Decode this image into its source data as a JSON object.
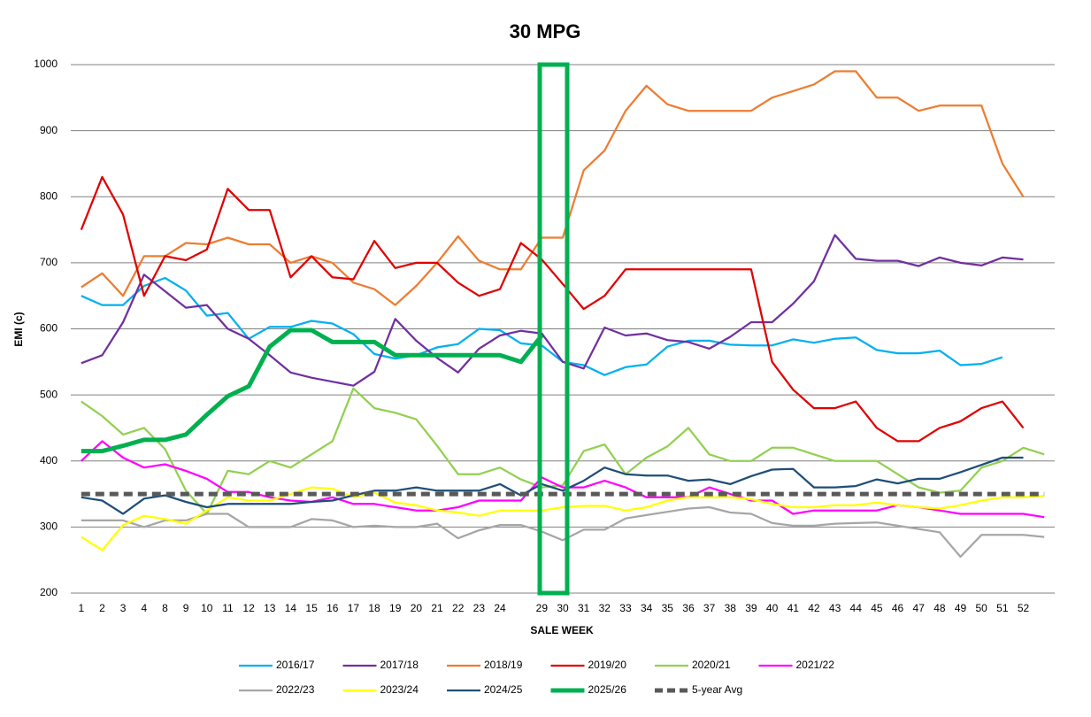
{
  "chart_data": {
    "type": "line",
    "title": "30 MPG",
    "x_label": "SALE WEEK",
    "y_label": "EMI (c)",
    "categories": [
      "1",
      "2",
      "3",
      "4",
      "8",
      "9",
      "10",
      "11",
      "12",
      "13",
      "14",
      "15",
      "16",
      "17",
      "18",
      "19",
      "20",
      "21",
      "22",
      "23",
      "24",
      null,
      "29",
      "30",
      "31",
      "32",
      "33",
      "34",
      "35",
      "36",
      "37",
      "38",
      "39",
      "40",
      "41",
      "42",
      "43",
      "44",
      "45",
      "46",
      "47",
      "48",
      "49",
      "50",
      "51",
      "52",
      null
    ],
    "ylim": [
      200,
      1000
    ],
    "yticks": [
      200,
      300,
      400,
      500,
      600,
      700,
      800,
      900,
      1000
    ],
    "grid": true,
    "legend": "bottom",
    "series": [
      {
        "name": "2016/17",
        "color": "#00b0f0",
        "values": [
          650,
          636,
          636,
          665,
          677,
          658,
          620,
          624,
          585,
          603,
          603,
          612,
          608,
          592,
          562,
          555,
          560,
          572,
          577,
          600,
          598,
          578,
          575,
          550,
          545,
          530,
          542,
          546,
          573,
          582,
          582,
          576,
          575,
          575,
          584,
          579,
          585,
          587,
          568,
          563,
          563,
          567,
          545,
          547,
          557,
          null,
          null
        ]
      },
      {
        "name": "2017/18",
        "color": "#7030a0",
        "values": [
          548,
          560,
          610,
          682,
          657,
          632,
          636,
          600,
          585,
          560,
          534,
          526,
          520,
          514,
          535,
          615,
          582,
          556,
          534,
          570,
          590,
          597,
          593,
          550,
          540,
          602,
          590,
          593,
          583,
          580,
          570,
          588,
          610,
          610,
          638,
          672,
          742,
          706,
          703,
          703,
          695,
          708,
          700,
          696,
          708,
          705,
          null
        ]
      },
      {
        "name": "2018/19",
        "color": "#ed7d31",
        "values": [
          663,
          684,
          650,
          710,
          710,
          730,
          728,
          738,
          728,
          728,
          700,
          710,
          700,
          670,
          660,
          636,
          665,
          700,
          740,
          703,
          690,
          690,
          738,
          738,
          840,
          870,
          930,
          968,
          940,
          930,
          930,
          930,
          930,
          950,
          960,
          970,
          990,
          990,
          950,
          950,
          930,
          938,
          938,
          938,
          850,
          800,
          null
        ]
      },
      {
        "name": "2019/20",
        "color": "#e00000",
        "values": [
          750,
          830,
          773,
          650,
          710,
          704,
          720,
          812,
          780,
          780,
          678,
          710,
          678,
          675,
          733,
          692,
          700,
          700,
          670,
          650,
          660,
          730,
          705,
          668,
          630,
          650,
          690,
          690,
          690,
          690,
          690,
          690,
          690,
          550,
          508,
          480,
          480,
          490,
          450,
          430,
          430,
          450,
          460,
          480,
          490,
          450,
          null
        ]
      },
      {
        "name": "2020/21",
        "color": "#92d050",
        "values": [
          490,
          468,
          440,
          450,
          418,
          355,
          320,
          385,
          380,
          400,
          390,
          410,
          430,
          510,
          480,
          473,
          463,
          423,
          380,
          380,
          390,
          372,
          360,
          363,
          415,
          425,
          380,
          405,
          422,
          450,
          410,
          400,
          400,
          420,
          420,
          410,
          400,
          400,
          400,
          380,
          360,
          352,
          355,
          390,
          400,
          420,
          410
        ]
      },
      {
        "name": "2021/22",
        "color": "#ff00ff",
        "values": [
          400,
          430,
          405,
          390,
          395,
          385,
          373,
          353,
          353,
          345,
          340,
          338,
          345,
          335,
          335,
          330,
          325,
          325,
          330,
          340,
          340,
          340,
          375,
          360,
          360,
          370,
          360,
          345,
          345,
          345,
          360,
          350,
          340,
          340,
          320,
          325,
          325,
          325,
          325,
          333,
          330,
          325,
          320,
          320,
          320,
          320,
          315
        ]
      },
      {
        "name": "2022/23",
        "color": "#a6a6a6",
        "values": [
          310,
          310,
          310,
          300,
          310,
          310,
          320,
          320,
          300,
          300,
          300,
          312,
          310,
          300,
          302,
          300,
          300,
          305,
          283,
          295,
          303,
          303,
          293,
          280,
          296,
          296,
          313,
          318,
          323,
          328,
          330,
          322,
          320,
          306,
          302,
          302,
          305,
          306,
          307,
          302,
          297,
          292,
          255,
          288,
          288,
          288,
          285
        ]
      },
      {
        "name": "2023/24",
        "color": "#ffff00",
        "values": [
          285,
          265,
          303,
          317,
          312,
          305,
          325,
          345,
          340,
          340,
          350,
          360,
          358,
          345,
          352,
          337,
          333,
          325,
          322,
          317,
          325,
          325,
          325,
          330,
          332,
          332,
          325,
          330,
          340,
          345,
          345,
          345,
          342,
          335,
          330,
          330,
          333,
          333,
          337,
          333,
          330,
          328,
          333,
          340,
          345,
          345,
          347
        ]
      },
      {
        "name": "2024/25",
        "color": "#1f4e79",
        "values": [
          345,
          340,
          320,
          343,
          348,
          338,
          330,
          335,
          335,
          335,
          335,
          338,
          340,
          348,
          355,
          355,
          360,
          355,
          355,
          355,
          365,
          348,
          365,
          355,
          370,
          390,
          380,
          378,
          378,
          370,
          372,
          365,
          377,
          387,
          388,
          360,
          360,
          362,
          372,
          366,
          373,
          373,
          383,
          394,
          405,
          405,
          null
        ]
      },
      {
        "name": "2025/26",
        "color": "#00b050",
        "width": 5,
        "values": [
          415,
          415,
          423,
          432,
          432,
          440,
          470,
          498,
          513,
          573,
          598,
          598,
          580,
          580,
          580,
          560,
          560,
          560,
          560,
          560,
          560,
          550,
          590,
          null,
          null,
          null,
          null,
          null,
          null,
          null,
          null,
          null,
          null,
          null,
          null,
          null,
          null,
          null,
          null,
          null,
          null,
          null,
          null,
          null,
          null,
          null,
          null
        ]
      },
      {
        "name": "5-year Avg",
        "color": "#595959",
        "width": 5,
        "dashed": true,
        "values": [
          350,
          350,
          350,
          350,
          350,
          350,
          350,
          350,
          350,
          350,
          350,
          350,
          350,
          350,
          350,
          350,
          350,
          350,
          350,
          350,
          350,
          350,
          350,
          350,
          350,
          350,
          350,
          350,
          350,
          350,
          350,
          350,
          350,
          350,
          350,
          350,
          350,
          350,
          350,
          350,
          350,
          350,
          350,
          350,
          350,
          350,
          350
        ]
      }
    ]
  }
}
